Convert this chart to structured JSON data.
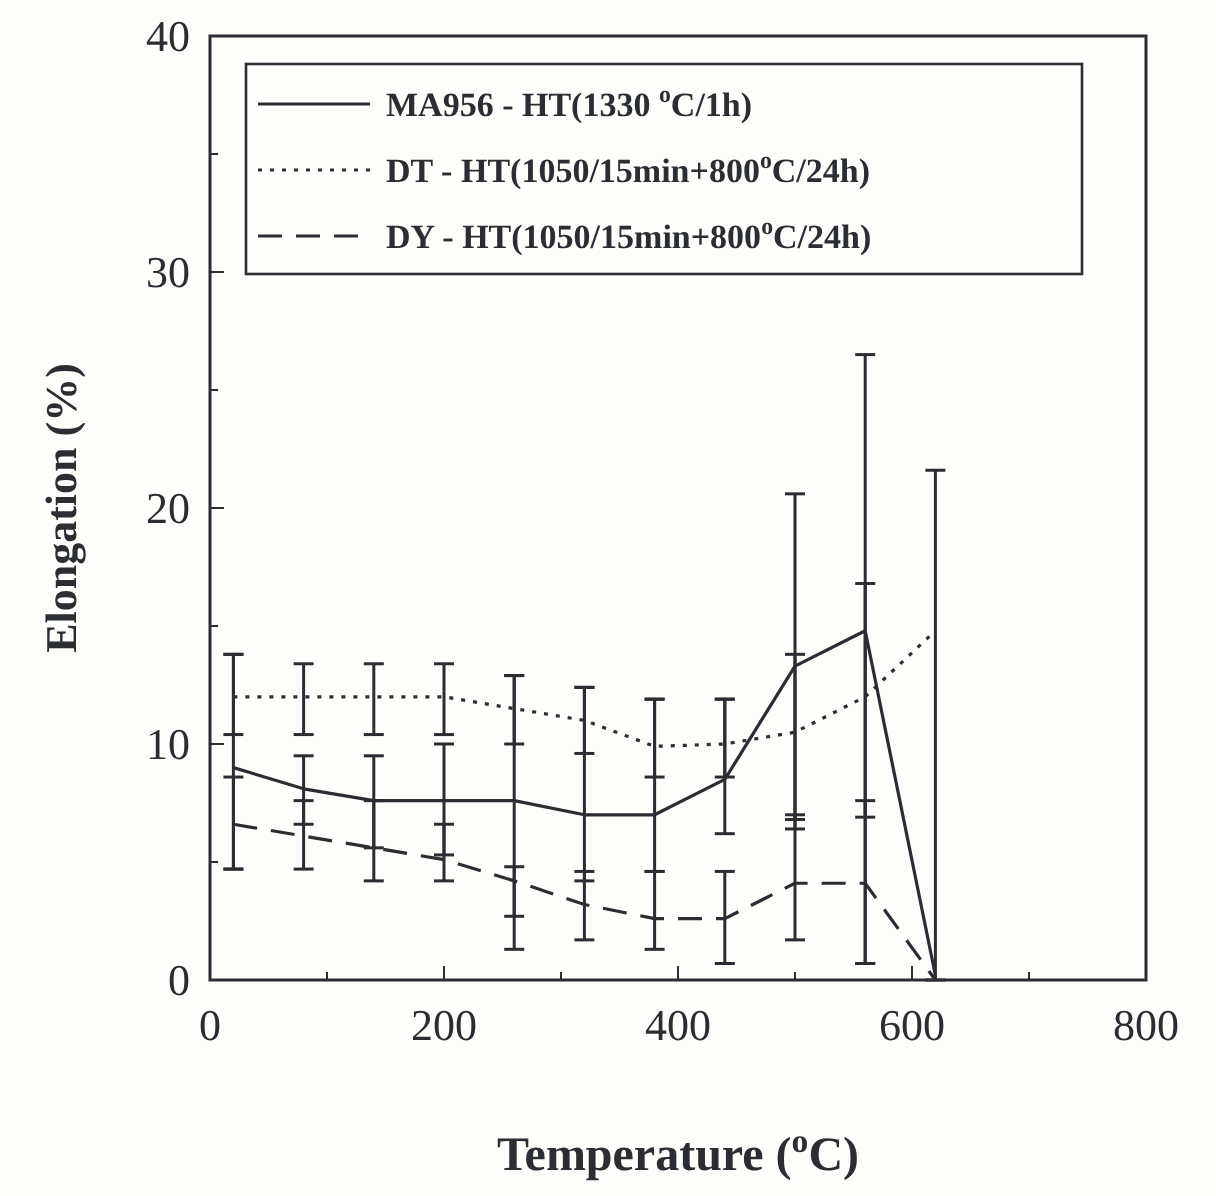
{
  "chart_data": {
    "type": "line",
    "xlabel": "Temperature ($^{o}$C)",
    "ylabel": "Elongation (%)",
    "x": [
      20,
      80,
      140,
      200,
      260,
      320,
      380,
      440,
      500,
      560,
      620
    ],
    "xlim": [
      0,
      800
    ],
    "xticks": [
      0,
      {
        "value": 100,
        "label": null
      },
      200,
      {
        "value": 300,
        "label": null
      },
      400,
      {
        "value": 500,
        "label": null
      },
      600,
      {
        "value": 700,
        "label": null
      },
      800
    ],
    "ylim": [
      0,
      40
    ],
    "yticks": [
      0,
      {
        "value": 5,
        "label": null
      },
      10,
      {
        "value": 15,
        "label": null
      },
      20,
      {
        "value": 25,
        "label": null
      },
      30,
      {
        "value": 35,
        "label": null
      },
      40
    ],
    "grid": false,
    "legend": "top",
    "marker": "none",
    "series": [
      {
        "name": "MA956 - HT(1330 $^{o}$C/1h)",
        "color": "#2a2d33",
        "line_style": "solid",
        "values": [
          9.0,
          8.1,
          7.6,
          7.6,
          7.6,
          7.0,
          7.0,
          8.5,
          13.3,
          14.8,
          0.2
        ],
        "errors": [
          [
            4.7,
            13.8
          ],
          [
            6.6,
            9.5
          ],
          [
            5.6,
            9.5
          ],
          [
            5.3,
            10.0
          ],
          [
            2.7,
            12.9
          ],
          [
            4.2,
            12.4
          ],
          [
            4.6,
            11.9
          ],
          [
            6.2,
            11.9
          ],
          [
            6.8,
            20.6
          ],
          [
            0.7,
            26.5
          ],
          [
            0,
            21.6
          ]
        ]
      },
      {
        "name": "DT - HT(1050/15min+800$^{o}$C/24h)",
        "color": "#2a2d33",
        "line_style": "dotted",
        "values": [
          12.0,
          12.0,
          12.0,
          12.0,
          11.5,
          11.0,
          9.9,
          10.0,
          10.5,
          12.0,
          14.8
        ],
        "errors": [
          [
            10.4,
            13.8
          ],
          [
            10.4,
            13.4
          ],
          [
            10.4,
            13.4
          ],
          [
            10.4,
            13.4
          ],
          [
            10.0,
            12.9
          ],
          [
            9.6,
            12.4
          ],
          [
            8.6,
            11.9
          ],
          [
            8.6,
            11.9
          ],
          [
            6.4,
            13.8
          ],
          [
            6.9,
            16.8
          ],
          null
        ]
      },
      {
        "name": "DY - HT(1050/15min+800$^{o}$C/24h)",
        "color": "#2a2d33",
        "line_style": "dashed",
        "values": [
          6.6,
          6.1,
          5.6,
          5.1,
          4.2,
          3.2,
          2.6,
          2.6,
          4.1,
          4.1,
          0
        ],
        "errors": [
          [
            4.7,
            8.6
          ],
          [
            4.7,
            7.6
          ],
          [
            4.2,
            7.6
          ],
          [
            4.2,
            6.6
          ],
          [
            1.3,
            4.8
          ],
          [
            1.7,
            4.6
          ],
          [
            1.3,
            4.6
          ],
          [
            0.7,
            4.6
          ],
          [
            1.7,
            7.0
          ],
          [
            0.7,
            7.6
          ],
          null
        ]
      }
    ]
  }
}
